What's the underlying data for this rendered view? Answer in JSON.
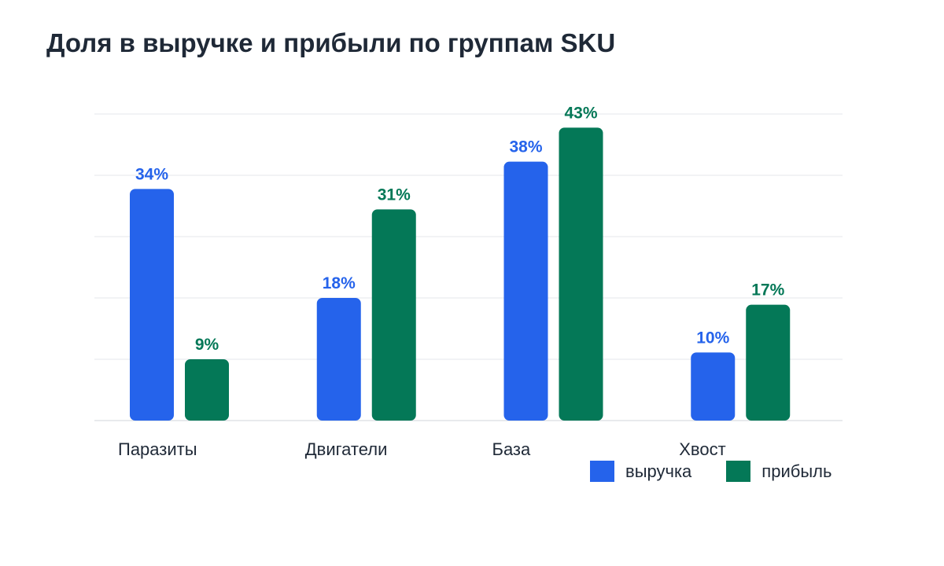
{
  "chart_data": {
    "type": "bar",
    "title": "Доля в выручке и прибыли по группам SKU",
    "categories": [
      "Паразиты",
      "Двигатели",
      "База",
      "Хвост"
    ],
    "series": [
      {
        "name": "выручка",
        "values": [
          34,
          18,
          38,
          10
        ],
        "labels": [
          "34%",
          "18%",
          "38%",
          "10%"
        ],
        "color": "#2563eb"
      },
      {
        "name": "прибыль",
        "values": [
          9,
          31,
          43,
          17
        ],
        "labels": [
          "9%",
          "31%",
          "43%",
          "17%"
        ],
        "color": "#047857"
      }
    ],
    "ylim": [
      0,
      45
    ],
    "grid": true,
    "legend_position": "bottom-right",
    "xlabel": "",
    "ylabel": ""
  }
}
